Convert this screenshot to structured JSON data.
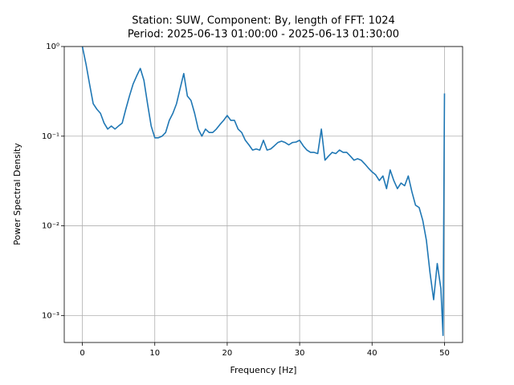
{
  "chart_data": {
    "type": "line",
    "title": "Station: SUW, Component: By, length of FFT: 1024",
    "subtitle": "Period: 2025-06-13 01:00:00 - 2025-06-13 01:30:00",
    "x_label": "Frequency [Hz]",
    "y_label": "Power Spectral Density",
    "x": [
      0,
      0.5,
      1,
      1.5,
      2,
      2.5,
      3,
      3.5,
      4,
      4.5,
      5,
      5.5,
      6,
      6.5,
      7,
      7.5,
      8,
      8.5,
      9,
      9.5,
      10,
      10.5,
      11,
      11.5,
      12,
      12.5,
      13,
      13.5,
      14,
      14.5,
      15,
      15.5,
      16,
      16.5,
      17,
      17.5,
      18,
      18.5,
      19,
      19.5,
      20,
      20.5,
      21,
      21.5,
      22,
      22.5,
      23,
      23.5,
      24,
      24.5,
      25,
      25.5,
      26,
      26.5,
      27,
      27.5,
      28,
      28.5,
      29,
      29.5,
      30,
      30.5,
      31,
      31.5,
      32,
      32.5,
      33,
      33.5,
      34,
      34.5,
      35,
      35.5,
      36,
      36.5,
      37,
      37.5,
      38,
      38.5,
      39,
      39.5,
      40,
      40.5,
      41,
      41.5,
      42,
      42.5,
      43,
      43.5,
      44,
      44.5,
      45,
      45.5,
      46,
      46.5,
      47,
      47.5,
      48,
      48.5,
      49,
      49.5,
      49.8,
      50
    ],
    "values": [
      1.0,
      0.64,
      0.38,
      0.23,
      0.2,
      0.18,
      0.14,
      0.12,
      0.13,
      0.12,
      0.13,
      0.14,
      0.2,
      0.28,
      0.38,
      0.47,
      0.57,
      0.42,
      0.23,
      0.13,
      0.096,
      0.096,
      0.1,
      0.11,
      0.15,
      0.18,
      0.23,
      0.34,
      0.5,
      0.28,
      0.25,
      0.18,
      0.12,
      0.1,
      0.12,
      0.11,
      0.11,
      0.12,
      0.135,
      0.15,
      0.17,
      0.15,
      0.15,
      0.12,
      0.11,
      0.09,
      0.08,
      0.07,
      0.072,
      0.07,
      0.09,
      0.07,
      0.072,
      0.078,
      0.085,
      0.088,
      0.085,
      0.08,
      0.085,
      0.086,
      0.09,
      0.078,
      0.07,
      0.066,
      0.066,
      0.064,
      0.12,
      0.054,
      0.06,
      0.066,
      0.064,
      0.07,
      0.066,
      0.066,
      0.06,
      0.054,
      0.056,
      0.054,
      0.049,
      0.044,
      0.04,
      0.037,
      0.032,
      0.036,
      0.026,
      0.042,
      0.032,
      0.026,
      0.03,
      0.028,
      0.036,
      0.024,
      0.017,
      0.016,
      0.0115,
      0.0069,
      0.003,
      0.0015,
      0.0038,
      0.002,
      0.0006,
      0.3
    ],
    "color": "#1f77b4",
    "xlim": [
      -2.5,
      52.5
    ],
    "xticks": [
      0,
      10,
      20,
      30,
      40,
      50
    ],
    "ylim": [
      0.0005,
      1
    ],
    "log_y": true,
    "yticks": [
      {
        "value": 0.001,
        "label": "10⁻³"
      },
      {
        "value": 0.01,
        "label": "10⁻²"
      },
      {
        "value": 0.1,
        "label": "10⁻¹"
      },
      {
        "value": 1,
        "label": "10⁰"
      }
    ],
    "grid": true
  }
}
